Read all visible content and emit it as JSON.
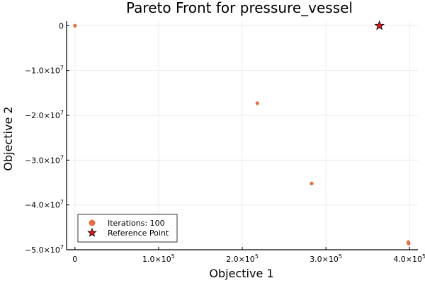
{
  "chart_data": {
    "type": "scatter",
    "title": "Pareto Front for pressure_vessel",
    "xlabel": "Objective 1",
    "ylabel": "Objective 2",
    "xlim": [
      -10000,
      410000
    ],
    "ylim": [
      -50000000,
      1000000
    ],
    "grid": true,
    "legend_position": "bottom-left",
    "colors": {
      "points": "#e26f46",
      "reference": "#e31a1c",
      "grid": "#ececec",
      "axis": "#000000"
    },
    "x_ticks": [
      {
        "value": 0,
        "label": "0"
      },
      {
        "value": 100000,
        "label": "1.0×10",
        "exp": "5"
      },
      {
        "value": 200000,
        "label": "2.0×10",
        "exp": "5"
      },
      {
        "value": 300000,
        "label": "3.0×10",
        "exp": "5"
      },
      {
        "value": 400000,
        "label": "4.0×10",
        "exp": "5"
      }
    ],
    "y_ticks": [
      {
        "value": 0,
        "label": "0"
      },
      {
        "value": -10000000,
        "label": "−1.0×10",
        "exp": "7"
      },
      {
        "value": -20000000,
        "label": "−2.0×10",
        "exp": "7"
      },
      {
        "value": -30000000,
        "label": "−3.0×10",
        "exp": "7"
      },
      {
        "value": -40000000,
        "label": "−4.0×10",
        "exp": "7"
      },
      {
        "value": -50000000,
        "label": "−5.0×10",
        "exp": "7"
      }
    ],
    "series": [
      {
        "name": "Iterations: 100",
        "marker": "circle",
        "points": [
          {
            "x": 0,
            "y": 0
          },
          {
            "x": 218000,
            "y": -17300000
          },
          {
            "x": 283000,
            "y": -35200000
          },
          {
            "x": 398500,
            "y": -48300000
          },
          {
            "x": 399000,
            "y": -48600000
          }
        ]
      },
      {
        "name": "Reference Point",
        "marker": "star",
        "points": [
          {
            "x": 364000,
            "y": 0
          }
        ]
      }
    ]
  }
}
